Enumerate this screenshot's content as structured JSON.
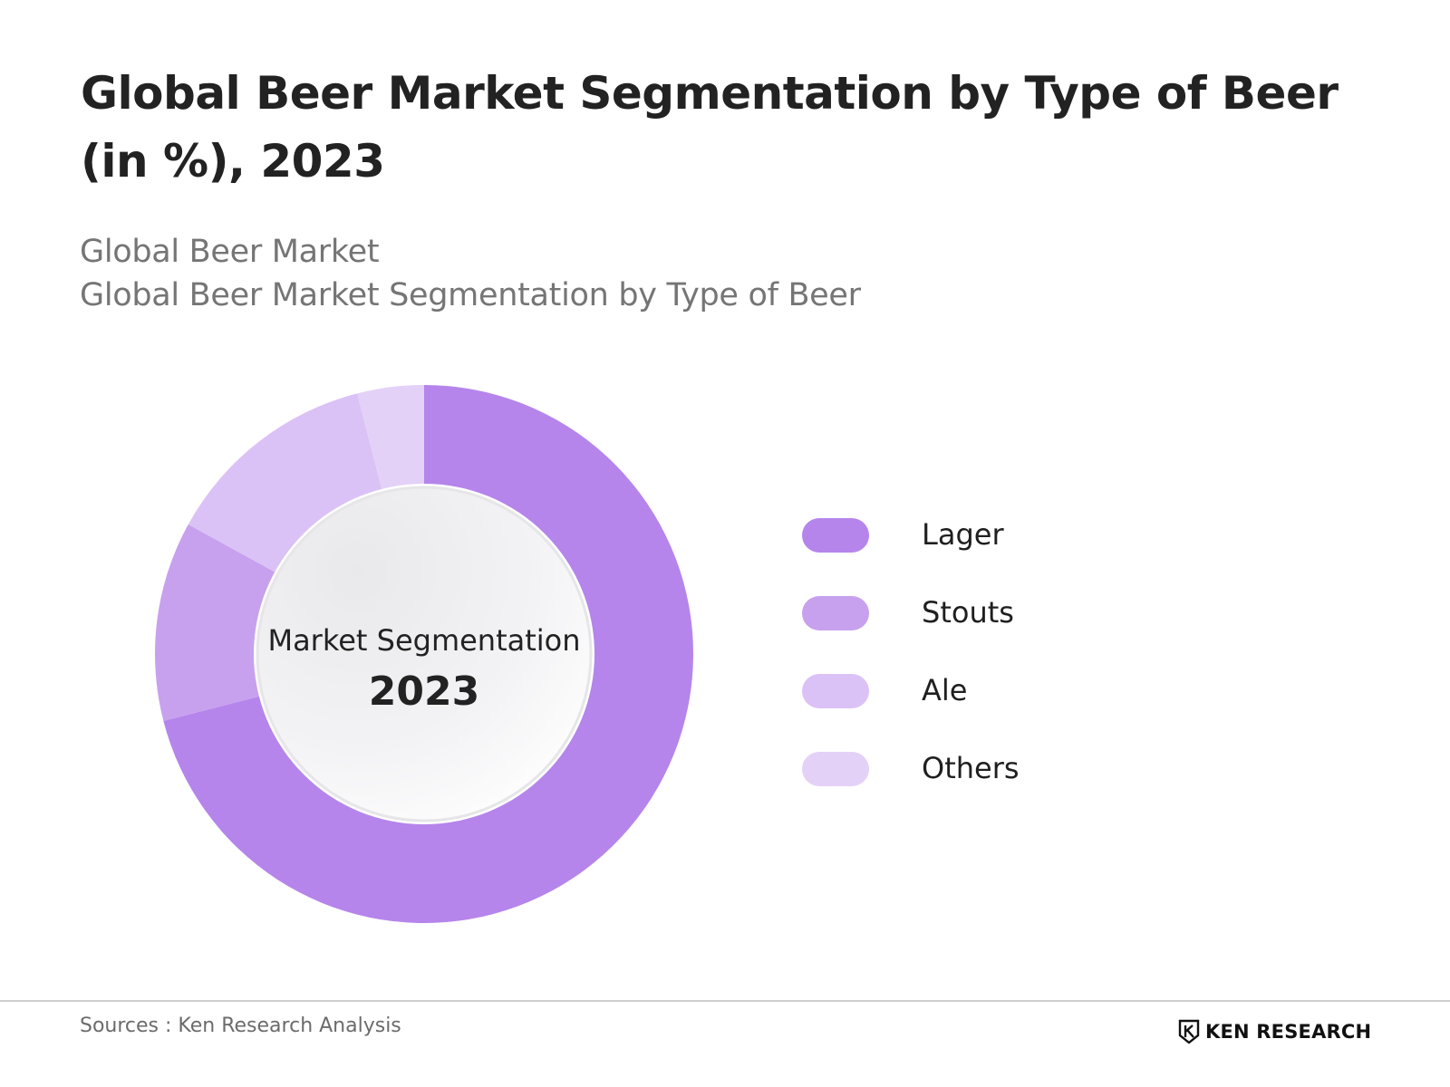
{
  "header": {
    "title": "Global Beer Market Segmentation by Type of Beer (in %), 2023",
    "subtitle_line1": "Global Beer Market",
    "subtitle_line2": "Global Beer Market Segmentation by Type of Beer"
  },
  "chart_data": {
    "type": "pie",
    "style": "donut",
    "categories": [
      "Lager",
      "Stouts",
      "Ale",
      "Others"
    ],
    "values": [
      71,
      12,
      13,
      4
    ],
    "colors": [
      "#b585eb",
      "#c8a1ee",
      "#dbc2f6",
      "#e4d1f8"
    ],
    "center_caption": "Market Segmentation",
    "center_value": "2023",
    "legend_position": "right"
  },
  "legend": {
    "items": [
      {
        "label": "Lager",
        "color": "#b585eb"
      },
      {
        "label": "Stouts",
        "color": "#c8a1ee"
      },
      {
        "label": "Ale",
        "color": "#dbc2f6"
      },
      {
        "label": "Others",
        "color": "#e4d1f8"
      }
    ]
  },
  "footer": {
    "source": "Sources : Ken Research Analysis",
    "logo_text": "KEN RESEARCH"
  }
}
